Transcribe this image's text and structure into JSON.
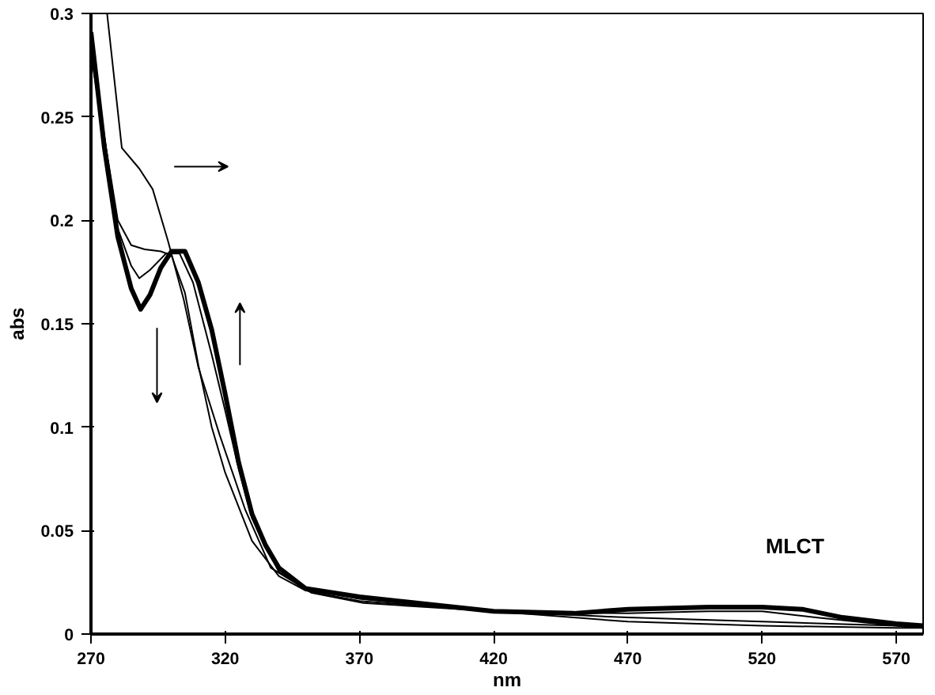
{
  "chart_data": {
    "type": "line",
    "xlabel": "nm",
    "ylabel": "abs",
    "xlim": [
      270,
      580
    ],
    "xticks": [
      270,
      320,
      370,
      420,
      470,
      520,
      570
    ],
    "ylim": [
      0,
      0.3
    ],
    "yticks": [
      0,
      0.05,
      0.1,
      0.15,
      0.2,
      0.25,
      0.3
    ],
    "grid": false,
    "marker": "none",
    "line_style": "solid",
    "annotations": [
      "MLCT"
    ],
    "series": [
      {
        "color": "#000000",
        "x": [
          276,
          281.5,
          288,
          293,
          298.7,
          304.5,
          310,
          318,
          327.5,
          337,
          352,
          371.5,
          420,
          470,
          520,
          570,
          580
        ],
        "values": [
          0.3,
          0.235,
          0.225,
          0.215,
          0.19,
          0.162,
          0.129,
          0.096,
          0.06,
          0.032,
          0.02,
          0.015,
          0.011,
          0.006,
          0.004,
          0.003,
          0.003
        ]
      },
      {
        "color": "#000000",
        "x": [
          270,
          275,
          280,
          285,
          290,
          296,
          300,
          305,
          310,
          315,
          320,
          330,
          340,
          350,
          370,
          420,
          470,
          520,
          570,
          580
        ],
        "values": [
          0.28,
          0.24,
          0.2,
          0.188,
          0.186,
          0.185,
          0.183,
          0.165,
          0.13,
          0.1,
          0.078,
          0.045,
          0.028,
          0.021,
          0.016,
          0.011,
          0.008,
          0.006,
          0.004,
          0.003
        ]
      },
      {
        "color": "#000000",
        "x": [
          270,
          280,
          285,
          288,
          292,
          298,
          303,
          308,
          315,
          320,
          325,
          330,
          340,
          350,
          370,
          420,
          470,
          500,
          520,
          540,
          570,
          580
        ],
        "values": [
          0.285,
          0.196,
          0.178,
          0.172,
          0.176,
          0.184,
          0.184,
          0.17,
          0.135,
          0.108,
          0.08,
          0.056,
          0.03,
          0.022,
          0.017,
          0.011,
          0.01,
          0.011,
          0.011,
          0.008,
          0.004,
          0.003
        ]
      },
      {
        "color": "#000000",
        "x": [
          270,
          275,
          280,
          285,
          288.5,
          292,
          296,
          300,
          305,
          310,
          315,
          320,
          325,
          330,
          335,
          340,
          350,
          370,
          420,
          450,
          470,
          500,
          520,
          535,
          550,
          570,
          580
        ],
        "values": [
          0.291,
          0.235,
          0.192,
          0.167,
          0.157,
          0.164,
          0.177,
          0.185,
          0.185,
          0.17,
          0.147,
          0.116,
          0.083,
          0.058,
          0.043,
          0.032,
          0.022,
          0.018,
          0.011,
          0.01,
          0.012,
          0.013,
          0.013,
          0.012,
          0.008,
          0.005,
          0.004
        ]
      }
    ]
  }
}
